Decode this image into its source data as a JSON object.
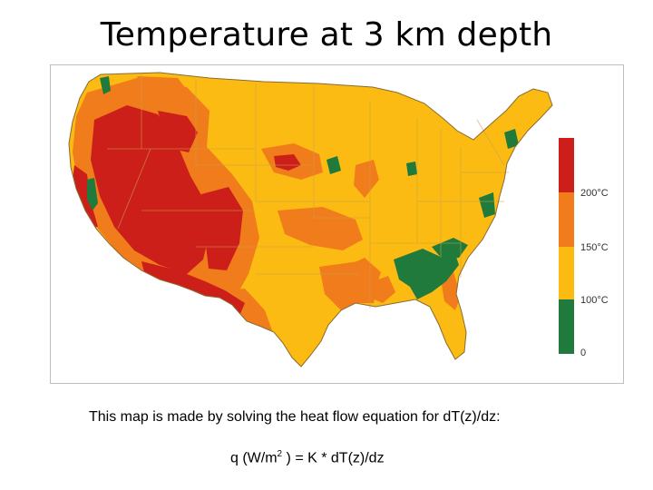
{
  "slide": {
    "title": "Temperature at 3 km depth",
    "caption": "This map is made by solving the heat flow equation for dT(z)/dz:",
    "formula": {
      "prefix": "q (W/m",
      "exponent": "2",
      "suffix": " ) = K * dT(z)/dz"
    }
  },
  "map": {
    "colors": {
      "very_hot": "#cc1f1a",
      "hot": "#f07c1c",
      "warm": "#fbbb12",
      "cool": "#1f7a3c",
      "border": "#c9a24a",
      "outline": "#8a6a30"
    },
    "legend": {
      "bands": [
        {
          "color": "#cc1f1a",
          "label": "200°C"
        },
        {
          "color": "#f07c1c",
          "label": "150°C"
        },
        {
          "color": "#fbbb12",
          "label": "100°C"
        },
        {
          "color": "#1f7a3c",
          "label": "0"
        }
      ]
    }
  }
}
